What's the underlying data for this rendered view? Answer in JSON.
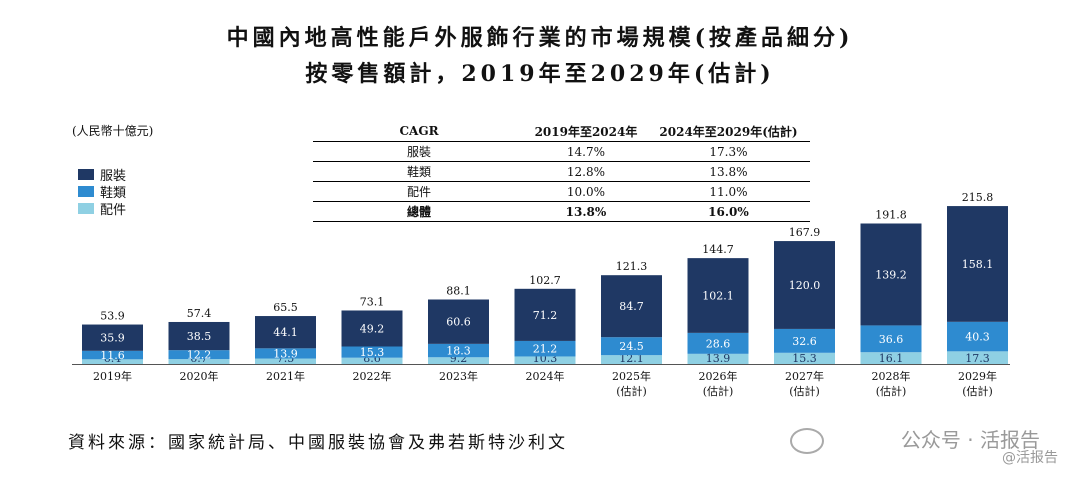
{
  "title_line1": "中國內地高性能戶外服飾行業的市場規模(按產品細分)",
  "title_line2": "按零售額計，2019年至2029年(估計)",
  "unit": "(人民幣十億元)",
  "legend": [
    "服裝",
    "鞋類",
    "配件"
  ],
  "colors": {
    "apparel": "#1f3864",
    "footwear": "#2e8bd0",
    "accessories": "#8fd0e3"
  },
  "cagr_table": {
    "header": [
      "CAGR",
      "2019年至2024年",
      "2024年至2029年(估計)"
    ],
    "rows": [
      [
        "服裝",
        "14.7%",
        "17.3%"
      ],
      [
        "鞋類",
        "12.8%",
        "13.8%"
      ],
      [
        "配件",
        "10.0%",
        "11.0%"
      ]
    ],
    "total": [
      "總體",
      "13.8%",
      "16.0%"
    ]
  },
  "source": "資料來源：國家統計局、中國服裝協會及弗若斯特沙利文",
  "watermark": "公众号 · 活报告",
  "watermark_small": "@活报告",
  "chart_data": {
    "type": "bar",
    "stacked": true,
    "categories": [
      "2019年",
      "2020年",
      "2021年",
      "2022年",
      "2023年",
      "2024年",
      "2025年",
      "2026年",
      "2027年",
      "2028年",
      "2029年"
    ],
    "category_sub": [
      "",
      "",
      "",
      "",
      "",
      "",
      "(估計)",
      "(估計)",
      "(估計)",
      "(估計)",
      "(估計)"
    ],
    "series": [
      {
        "name": "配件",
        "values": [
          6.4,
          6.7,
          7.5,
          8.6,
          9.2,
          10.3,
          12.1,
          13.9,
          15.3,
          16.1,
          17.3
        ]
      },
      {
        "name": "鞋類",
        "values": [
          11.6,
          12.2,
          13.9,
          15.3,
          18.3,
          21.2,
          24.5,
          28.6,
          32.6,
          36.6,
          40.3
        ]
      },
      {
        "name": "服裝",
        "values": [
          35.9,
          38.5,
          44.1,
          49.2,
          60.6,
          71.2,
          84.7,
          102.1,
          120.0,
          139.2,
          158.1
        ]
      }
    ],
    "totals": [
      53.9,
      57.4,
      65.5,
      73.1,
      88.1,
      102.7,
      121.3,
      144.7,
      167.9,
      191.8,
      215.8
    ],
    "ylim": [
      0,
      215.8
    ]
  }
}
